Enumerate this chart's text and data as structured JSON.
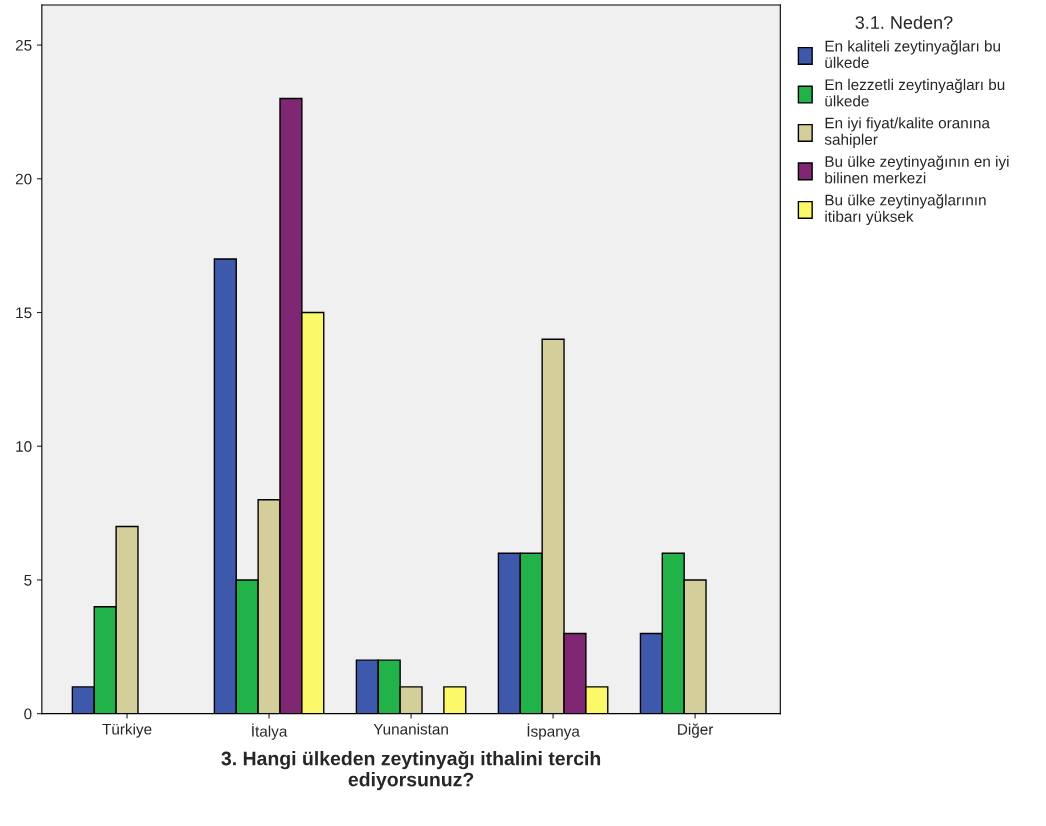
{
  "chart_data": {
    "type": "bar",
    "xlabel": "3. Hangi ülkeden zeytinyağı ithalini tercih\nediyorsunuz?",
    "legend_title": "3.1. Neden?",
    "legend": "right",
    "grid": false,
    "categories": [
      "Türkiye",
      "İtalya",
      "Yunanistan",
      "İspanya",
      "Diğer"
    ],
    "ylim": [
      0,
      26.5
    ],
    "yticks": [
      0,
      5,
      10,
      15,
      20,
      25
    ],
    "series": [
      {
        "name": "En kaliteli zeytinyağları bu\nülkede",
        "color": "#3e58ac",
        "values": [
          1,
          17,
          2,
          6,
          3
        ]
      },
      {
        "name": "En lezzetli zeytinyağları bu\nülkede",
        "color": "#21b24a",
        "values": [
          4,
          5,
          2,
          6,
          6
        ]
      },
      {
        "name": "En iyi fiyat/kalite oranına\nsahipler",
        "color": "#d4ce9a",
        "values": [
          7,
          8,
          1,
          14,
          5
        ]
      },
      {
        "name": "Bu ülke zeytinyağının en iyi\nbilinen merkezi",
        "color": "#802774",
        "values": [
          null,
          23,
          null,
          3,
          null
        ]
      },
      {
        "name": "Bu ülke zeytinyağlarının\nitibarı yüksek",
        "color": "#fbf969",
        "values": [
          null,
          15,
          1,
          1,
          null
        ]
      }
    ]
  }
}
